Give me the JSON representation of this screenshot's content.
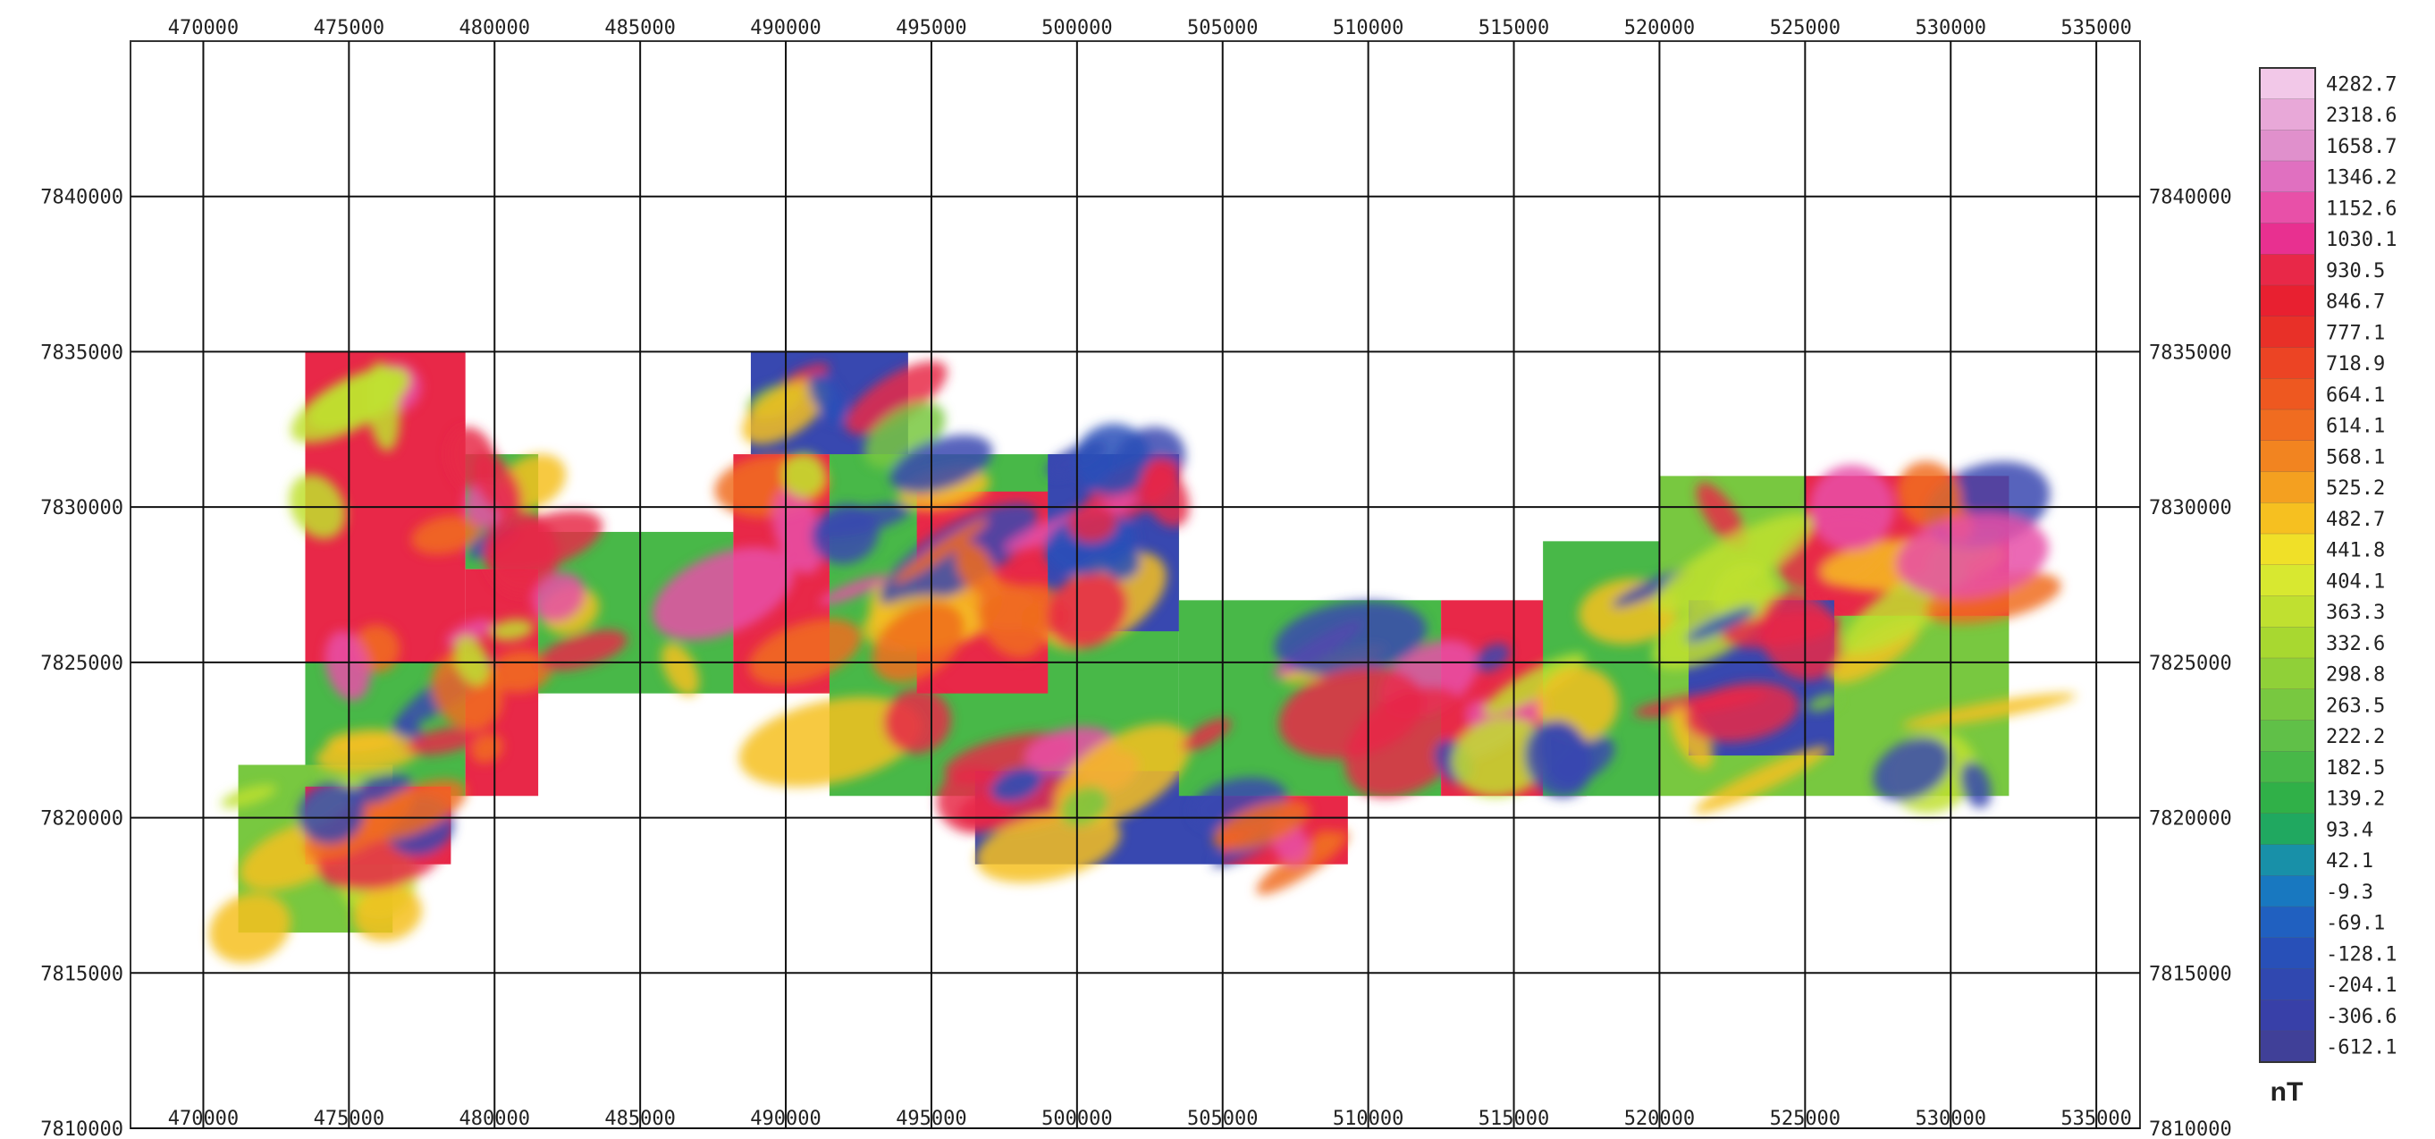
{
  "map": {
    "x_ticks": [
      "470000",
      "475000",
      "480000",
      "485000",
      "490000",
      "495000",
      "500000",
      "505000",
      "510000",
      "515000",
      "520000",
      "525000",
      "530000",
      "535000"
    ],
    "y_ticks": [
      "7840000",
      "7835000",
      "7830000",
      "7825000",
      "7820000",
      "7815000",
      "7810000"
    ],
    "x_range": [
      467500,
      536500
    ],
    "y_range": [
      7810000,
      7845000
    ],
    "grid": true
  },
  "colorbar": {
    "unit": "nT",
    "labels": [
      "4282.7",
      "2318.6",
      "1658.7",
      "1346.2",
      "1152.6",
      "1030.1",
      "930.5",
      "846.7",
      "777.1",
      "718.9",
      "664.1",
      "614.1",
      "568.1",
      "525.2",
      "482.7",
      "441.8",
      "404.1",
      "363.3",
      "332.6",
      "298.8",
      "263.5",
      "222.2",
      "182.5",
      "139.2",
      "93.4",
      "42.1",
      "-9.3",
      "-69.1",
      "-128.1",
      "-204.1",
      "-306.6",
      "-612.1"
    ],
    "colors": [
      "#f2c8e8",
      "#e8a8d8",
      "#e090cc",
      "#e070c0",
      "#e850a8",
      "#e83090",
      "#e82848",
      "#e82030",
      "#e83028",
      "#ec4424",
      "#ee5820",
      "#f06c20",
      "#f28420",
      "#f4a020",
      "#f6c020",
      "#f0e028",
      "#d8e830",
      "#c0e030",
      "#a8d830",
      "#90d038",
      "#78c840",
      "#60c048",
      "#48b848",
      "#30b048",
      "#20a860",
      "#1890a8",
      "#1878c0",
      "#2060c0",
      "#2850b8",
      "#3048b0",
      "#3840a8",
      "#404098"
    ]
  },
  "survey_blocks": [
    {
      "x0": 473500,
      "x1": 479000,
      "y0": 7825000,
      "y1": 7835000,
      "style": "hot"
    },
    {
      "x0": 479000,
      "x1": 481500,
      "y0": 7828000,
      "y1": 7831700,
      "style": "mixed"
    },
    {
      "x0": 473500,
      "x1": 479000,
      "y0": 7820700,
      "y1": 7825000,
      "style": "mixed"
    },
    {
      "x0": 479000,
      "x1": 481500,
      "y0": 7820700,
      "y1": 7828000,
      "style": "hot"
    },
    {
      "x0": 471200,
      "x1": 476500,
      "y0": 7816300,
      "y1": 7821700,
      "style": "green"
    },
    {
      "x0": 473500,
      "x1": 478500,
      "y0": 7818500,
      "y1": 7821000,
      "style": "hot"
    },
    {
      "x0": 481500,
      "x1": 488200,
      "y0": 7824000,
      "y1": 7829200,
      "style": "mixed"
    },
    {
      "x0": 488200,
      "x1": 494500,
      "y0": 7824000,
      "y1": 7831700,
      "style": "hot"
    },
    {
      "x0": 488800,
      "x1": 494200,
      "y0": 7831700,
      "y1": 7835000,
      "style": "cold"
    },
    {
      "x0": 491500,
      "x1": 503500,
      "y0": 7820700,
      "y1": 7831700,
      "style": "mixed"
    },
    {
      "x0": 494500,
      "x1": 499000,
      "y0": 7824000,
      "y1": 7830500,
      "style": "hot"
    },
    {
      "x0": 499000,
      "x1": 503500,
      "y0": 7826000,
      "y1": 7831700,
      "style": "cold"
    },
    {
      "x0": 496500,
      "x1": 505000,
      "y0": 7818500,
      "y1": 7821500,
      "style": "cold"
    },
    {
      "x0": 503500,
      "x1": 512500,
      "y0": 7820700,
      "y1": 7827000,
      "style": "mixed"
    },
    {
      "x0": 505000,
      "x1": 509300,
      "y0": 7818500,
      "y1": 7820700,
      "style": "hot"
    },
    {
      "x0": 512500,
      "x1": 517500,
      "y0": 7820700,
      "y1": 7827000,
      "style": "hot"
    },
    {
      "x0": 516000,
      "x1": 520000,
      "y0": 7820700,
      "y1": 7828900,
      "style": "mixed"
    },
    {
      "x0": 520000,
      "x1": 532000,
      "y0": 7820700,
      "y1": 7831000,
      "style": "green"
    },
    {
      "x0": 525000,
      "x1": 532000,
      "y0": 7826500,
      "y1": 7831000,
      "style": "hot"
    },
    {
      "x0": 521000,
      "x1": 526000,
      "y0": 7822000,
      "y1": 7827000,
      "style": "cold"
    }
  ]
}
